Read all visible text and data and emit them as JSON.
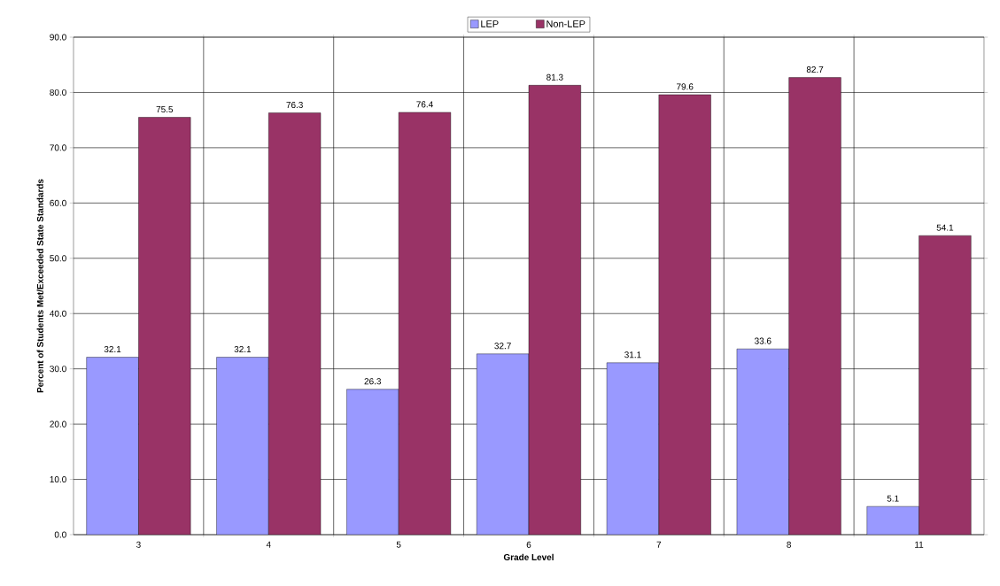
{
  "chart_data": {
    "type": "bar",
    "xlabel": "Grade Level",
    "ylabel": "Percent of Students Met/Exceeded State Standards",
    "categories": [
      "3",
      "4",
      "5",
      "6",
      "7",
      "8",
      "11"
    ],
    "series": [
      {
        "name": "LEP",
        "color": "#9999ff",
        "values": [
          32.1,
          32.1,
          26.3,
          32.7,
          31.1,
          33.6,
          5.1
        ]
      },
      {
        "name": "Non-LEP",
        "color": "#993366",
        "values": [
          75.5,
          76.3,
          76.4,
          81.3,
          79.6,
          82.7,
          54.1
        ]
      }
    ],
    "ylim": [
      0,
      90
    ],
    "yticks": [
      {
        "value": 0,
        "label": "0.0"
      },
      {
        "value": 10,
        "label": "10.0"
      },
      {
        "value": 20,
        "label": "20.0"
      },
      {
        "value": 30,
        "label": "30.0"
      },
      {
        "value": 40,
        "label": "40.0"
      },
      {
        "value": 50,
        "label": "50.0"
      },
      {
        "value": 60,
        "label": "60.0"
      },
      {
        "value": 70,
        "label": "70.0"
      },
      {
        "value": 80,
        "label": "80.0"
      },
      {
        "value": 90,
        "label": "90.0"
      }
    ],
    "grid": true,
    "legend": "top",
    "data_labels": true
  }
}
